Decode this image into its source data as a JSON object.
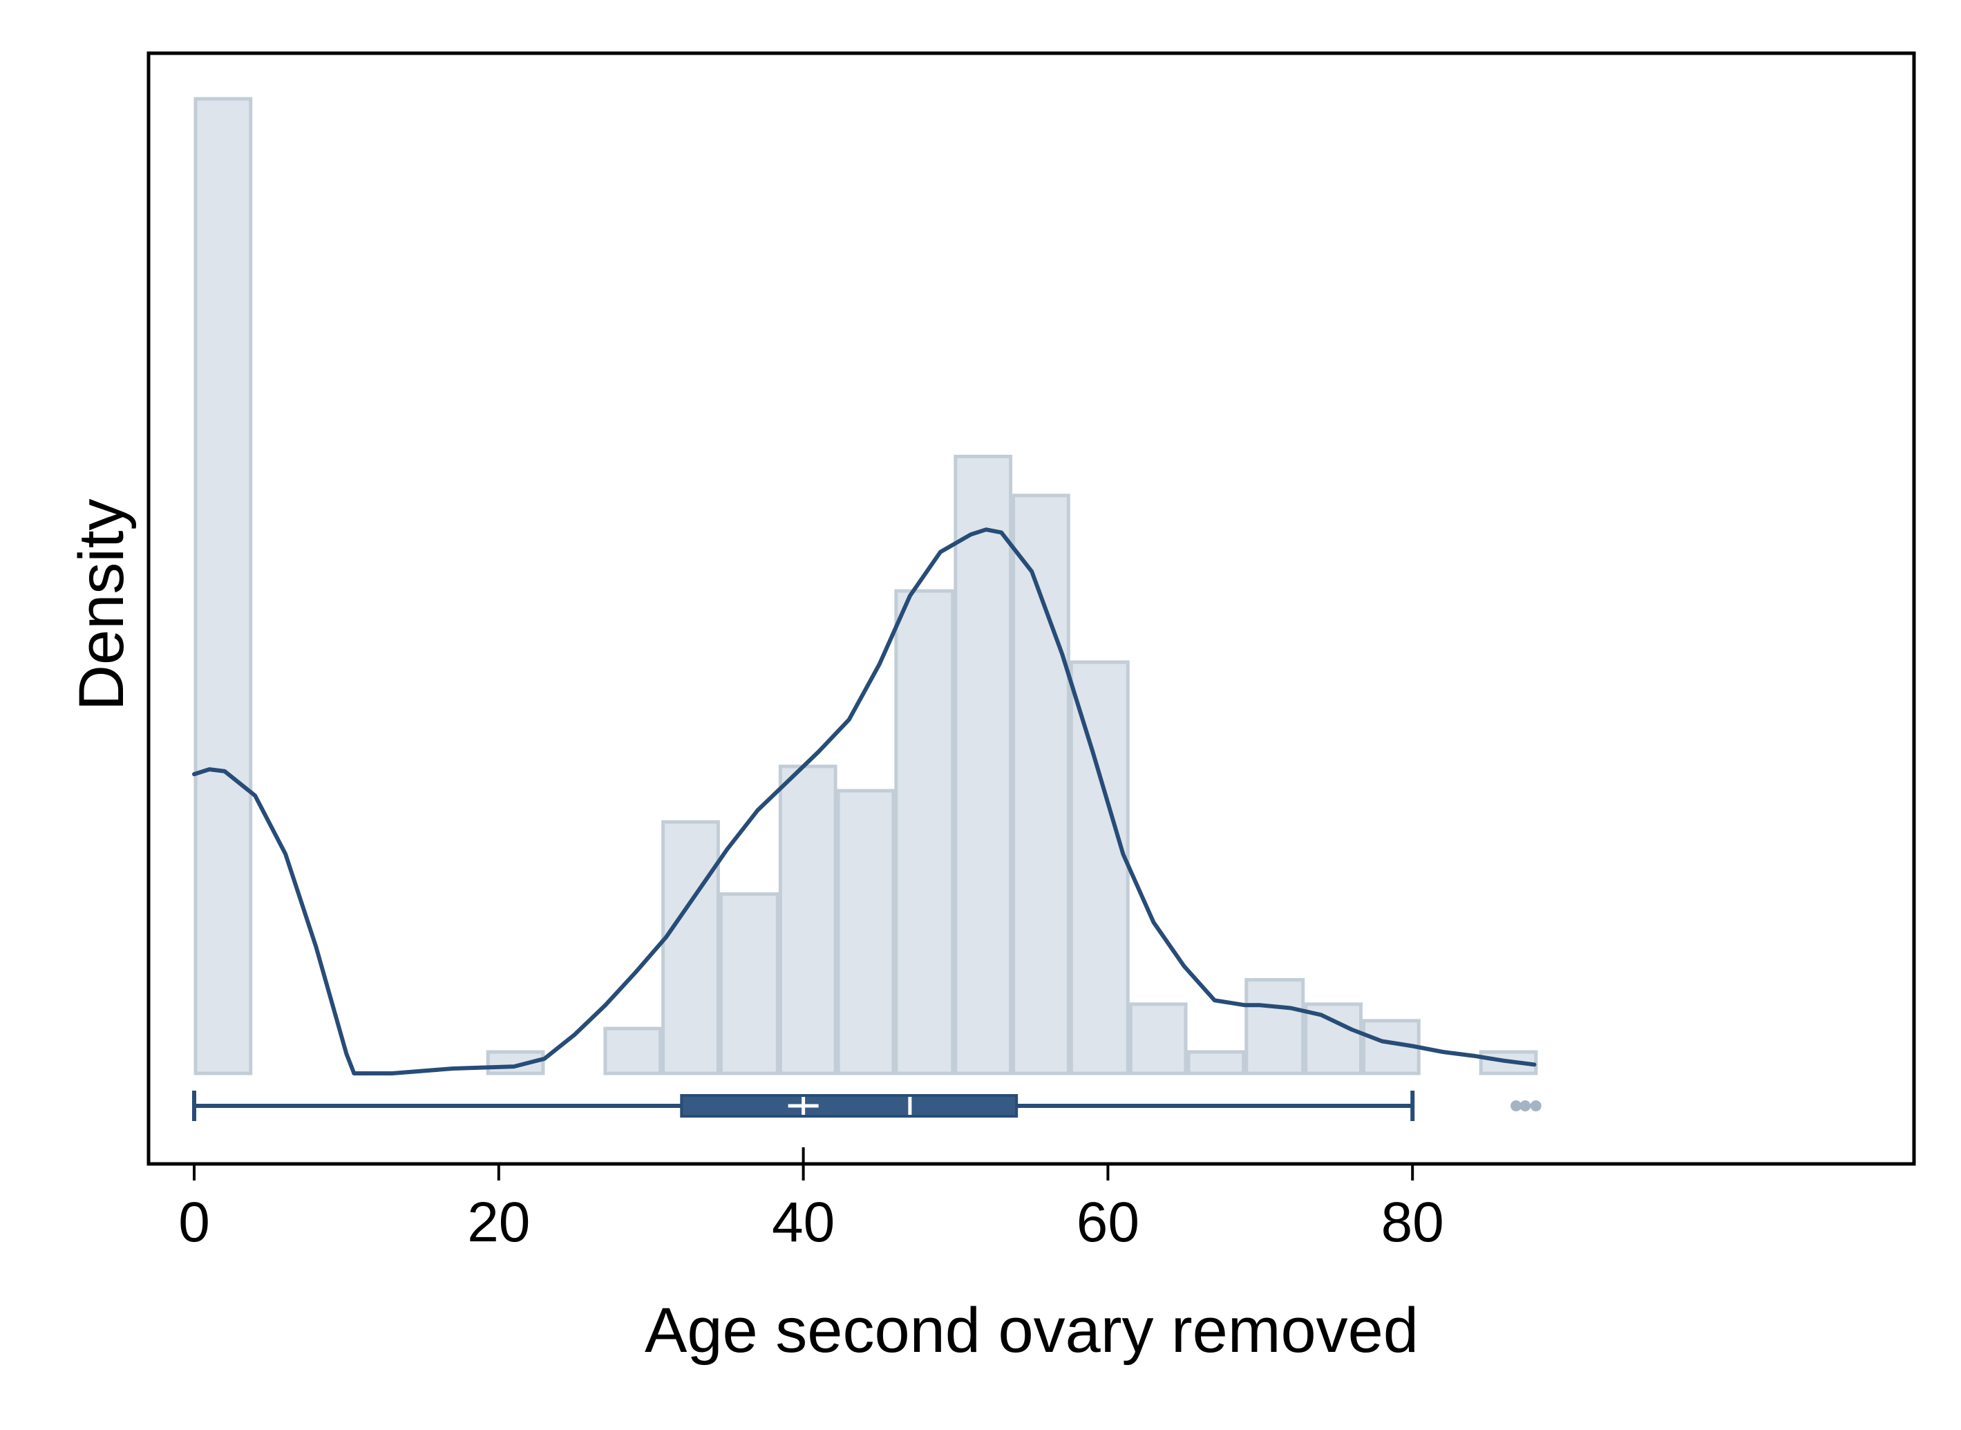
{
  "colors": {
    "background": "#ffffff",
    "frame": "#000000",
    "bar_fill": "#dde4eb",
    "bar_stroke": "#c2cdd7",
    "density_line": "#274c77",
    "box_fill": "#365a84",
    "box_stroke": "#274c77",
    "median_mark": "#ffffff",
    "outlier": "#a4b4c3"
  },
  "chart_data": {
    "type": "bar",
    "subtype": "histogram with kernel density overlay and horizontal box plot",
    "xlabel": "Age second ovary removed",
    "ylabel": "Density",
    "x_ticks": [
      0,
      20,
      40,
      60,
      80
    ],
    "x_tick_labels": [
      "0",
      "20",
      "40",
      "60",
      "80"
    ],
    "xlim": [
      -2.4,
      90.4
    ],
    "y_ticks_shown": false,
    "y_scale": "relative (no tick labels)",
    "grid": false,
    "legend": "none",
    "bins": [
      {
        "start": 0.0,
        "end": 3.8,
        "height": 1.0
      },
      {
        "start": 19.2,
        "end": 23.0,
        "height": 0.022
      },
      {
        "start": 26.9,
        "end": 30.7,
        "height": 0.046
      },
      {
        "start": 30.7,
        "end": 34.5,
        "height": 0.258
      },
      {
        "start": 34.5,
        "end": 38.4,
        "height": 0.184
      },
      {
        "start": 38.4,
        "end": 42.2,
        "height": 0.315
      },
      {
        "start": 42.2,
        "end": 46.0,
        "height": 0.29
      },
      {
        "start": 46.0,
        "end": 49.9,
        "height": 0.495
      },
      {
        "start": 49.9,
        "end": 53.7,
        "height": 0.633
      },
      {
        "start": 53.7,
        "end": 57.5,
        "height": 0.593
      },
      {
        "start": 57.5,
        "end": 61.4,
        "height": 0.422
      },
      {
        "start": 61.4,
        "end": 65.2,
        "height": 0.071
      },
      {
        "start": 65.2,
        "end": 69.0,
        "height": 0.022
      },
      {
        "start": 69.0,
        "end": 72.9,
        "height": 0.096
      },
      {
        "start": 72.9,
        "end": 76.7,
        "height": 0.071
      },
      {
        "start": 76.7,
        "end": 80.5,
        "height": 0.054
      },
      {
        "start": 84.4,
        "end": 88.2,
        "height": 0.022
      }
    ],
    "density_curve": {
      "x": [
        0,
        1,
        2,
        4,
        6,
        8,
        10,
        10.5,
        13,
        17,
        21,
        23,
        25,
        27,
        29,
        31,
        33,
        35,
        37,
        39,
        41,
        43,
        45,
        47,
        49,
        51,
        52,
        53,
        55,
        57,
        59,
        61,
        63,
        65,
        67,
        69,
        70,
        72,
        74,
        76,
        78,
        80,
        82,
        84,
        86,
        88
      ],
      "y": [
        0.307,
        0.312,
        0.31,
        0.285,
        0.225,
        0.13,
        0.02,
        0.0,
        0.0,
        0.005,
        0.007,
        0.015,
        0.04,
        0.07,
        0.104,
        0.14,
        0.185,
        0.23,
        0.27,
        0.3,
        0.33,
        0.363,
        0.42,
        0.49,
        0.535,
        0.553,
        0.558,
        0.555,
        0.515,
        0.43,
        0.33,
        0.225,
        0.155,
        0.11,
        0.075,
        0.07,
        0.07,
        0.067,
        0.06,
        0.045,
        0.033,
        0.028,
        0.022,
        0.018,
        0.013,
        0.009
      ]
    },
    "box_plot": {
      "whisker_low": 0,
      "q1": 32,
      "mean": 40,
      "median": 47,
      "q3": 54,
      "whisker_high": 80,
      "outliers": [
        86.8,
        87.4,
        88.1
      ]
    }
  }
}
